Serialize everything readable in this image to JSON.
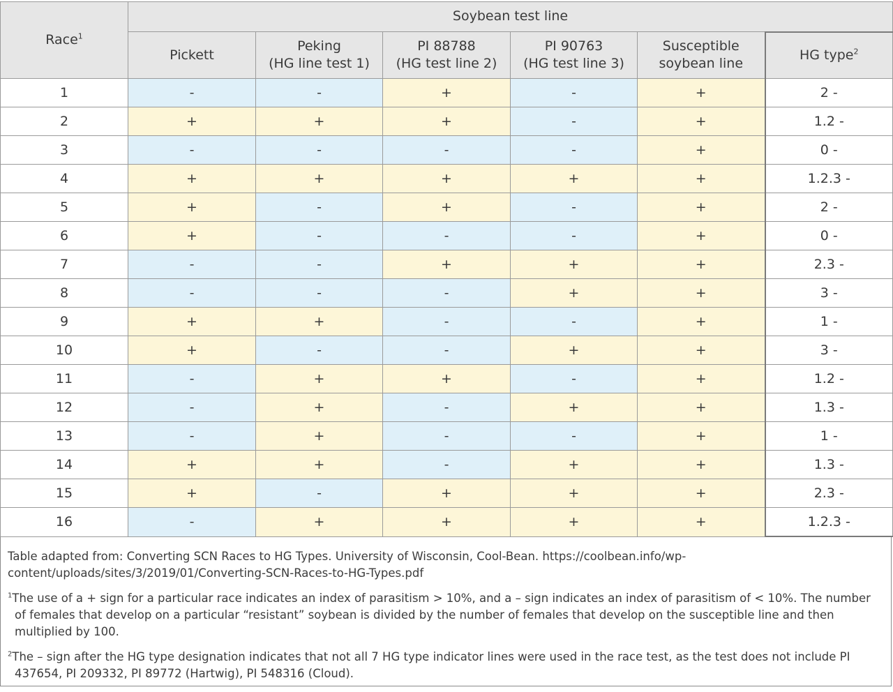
{
  "header": {
    "race_label": "Race",
    "race_sup": "1",
    "group_label": "Soybean test line",
    "columns": [
      {
        "line1": "Pickett",
        "line2": ""
      },
      {
        "line1": "Peking",
        "line2": "(HG line test 1)"
      },
      {
        "line1": "PI 88788",
        "line2": "(HG test line 2)"
      },
      {
        "line1": "PI 90763",
        "line2": "(HG test line 3)"
      },
      {
        "line1": "Susceptible",
        "line2": "soybean line"
      }
    ],
    "hg_label": "HG type",
    "hg_sup": "2"
  },
  "rows": [
    {
      "race": "1",
      "cells": [
        "-",
        "-",
        "+",
        "-",
        "+"
      ],
      "hg": "2 -"
    },
    {
      "race": "2",
      "cells": [
        "+",
        "+",
        "+",
        "-",
        "+"
      ],
      "hg": "1.2 -"
    },
    {
      "race": "3",
      "cells": [
        "-",
        "-",
        "-",
        "-",
        "+"
      ],
      "hg": "0 -"
    },
    {
      "race": "4",
      "cells": [
        "+",
        "+",
        "+",
        "+",
        "+"
      ],
      "hg": "1.2.3 -"
    },
    {
      "race": "5",
      "cells": [
        "+",
        "-",
        "+",
        "-",
        "+"
      ],
      "hg": "2 -"
    },
    {
      "race": "6",
      "cells": [
        "+",
        "-",
        "-",
        "-",
        "+"
      ],
      "hg": "0 -"
    },
    {
      "race": "7",
      "cells": [
        "-",
        "-",
        "+",
        "+",
        "+"
      ],
      "hg": "2.3 -"
    },
    {
      "race": "8",
      "cells": [
        "-",
        "-",
        "-",
        "+",
        "+"
      ],
      "hg": "3 -"
    },
    {
      "race": "9",
      "cells": [
        "+",
        "+",
        "-",
        "-",
        "+"
      ],
      "hg": "1 -"
    },
    {
      "race": "10",
      "cells": [
        "+",
        "-",
        "-",
        "+",
        "+"
      ],
      "hg": "3 -"
    },
    {
      "race": "11",
      "cells": [
        "-",
        "+",
        "+",
        "-",
        "+"
      ],
      "hg": "1.2 -"
    },
    {
      "race": "12",
      "cells": [
        "-",
        "+",
        "-",
        "+",
        "+"
      ],
      "hg": "1.3 -"
    },
    {
      "race": "13",
      "cells": [
        "-",
        "+",
        "-",
        "-",
        "+"
      ],
      "hg": "1 -"
    },
    {
      "race": "14",
      "cells": [
        "+",
        "+",
        "-",
        "+",
        "+"
      ],
      "hg": "1.3 -"
    },
    {
      "race": "15",
      "cells": [
        "+",
        "-",
        "+",
        "+",
        "+"
      ],
      "hg": "2.3 -"
    },
    {
      "race": "16",
      "cells": [
        "-",
        "+",
        "+",
        "+",
        "+"
      ],
      "hg": "1.2.3 -"
    }
  ],
  "colors": {
    "plus": "#fdf6d8",
    "minus": "#dff0f9",
    "header": "#e6e6e6"
  },
  "notes": {
    "source": "Table adapted from: Converting SCN Races to HG Types. University of Wisconsin, Cool-Bean. https://coolbean.info/wp-content/uploads/sites/3/2019/01/Converting-SCN-Races-to-HG-Types.pdf",
    "fn1_num": "1",
    "fn1": "The use of a + sign for a particular race indicates an index of parasitism > 10%, and a – sign indicates an index of parasitism of < 10%. The number of females that develop on a particular “resistant” soybean is divided by the number of females that develop on the susceptible line and then multiplied by 100.",
    "fn2_num": "2",
    "fn2": "The – sign after the HG type designation indicates that not all 7 HG type indicator lines were used in the race test, as the test does not include PI 437654, PI 209332, PI 89772 (Hartwig), PI 548316 (Cloud)."
  }
}
